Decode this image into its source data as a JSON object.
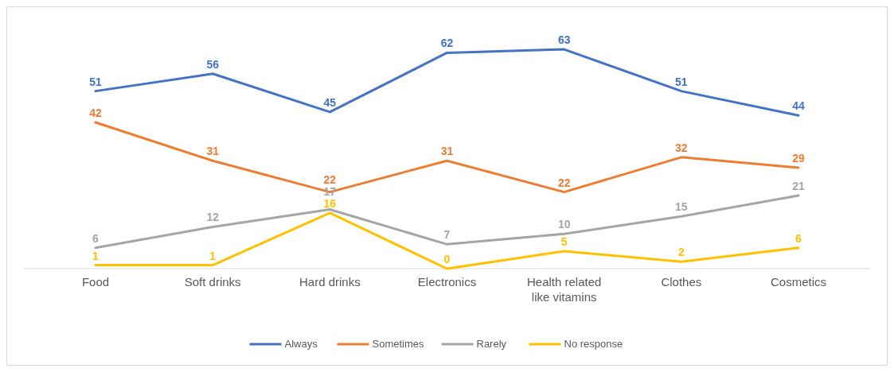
{
  "chart_data": {
    "type": "line",
    "categories": [
      "Food",
      "Soft drinks",
      "Hard drinks",
      "Electronics",
      "Health related like vitamins",
      "Clothes",
      "Cosmetics"
    ],
    "series": [
      {
        "name": "Always",
        "color": "#4472c4",
        "values": [
          51,
          56,
          45,
          62,
          63,
          51,
          44
        ]
      },
      {
        "name": "Sometimes",
        "color": "#ed7d31",
        "values": [
          42,
          31,
          22,
          31,
          22,
          32,
          29
        ]
      },
      {
        "name": "Rarely",
        "color": "#a5a5a5",
        "values": [
          6,
          12,
          17,
          7,
          10,
          15,
          21
        ]
      },
      {
        "name": "No response",
        "color": "#ffc000",
        "values": [
          1,
          1,
          16,
          0,
          5,
          2,
          6
        ]
      }
    ],
    "data_labels": true,
    "legend": "bottom",
    "line_style": "solid"
  }
}
